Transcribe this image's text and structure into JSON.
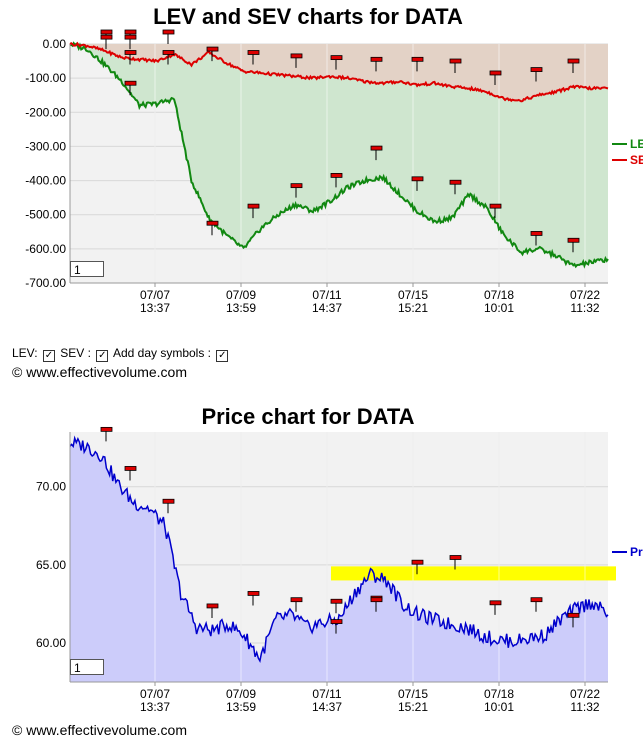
{
  "chart_data": [
    {
      "type": "line",
      "title": "LEV and SEV charts for DATA",
      "x_ticks": [
        {
          "date": "07/07",
          "time": "13:37"
        },
        {
          "date": "07/09",
          "time": "13:59"
        },
        {
          "date": "07/11",
          "time": "14:37"
        },
        {
          "date": "07/15",
          "time": "15:21"
        },
        {
          "date": "07/18",
          "time": "10:01"
        },
        {
          "date": "07/22",
          "time": "11:32"
        }
      ],
      "y_ticks": [
        "0.00",
        "-100.00",
        "-200.00",
        "-300.00",
        "-400.00",
        "-500.00",
        "-600.00",
        "-700.00"
      ],
      "ylim": [
        -700,
        0
      ],
      "legend_position": "right",
      "series": [
        {
          "name": "LEV",
          "label": "LE",
          "color": "#118811",
          "values": [
            0,
            -15,
            -60,
            -110,
            -180,
            -175,
            -160,
            -400,
            -510,
            -560,
            -600,
            -540,
            -500,
            -470,
            -490,
            -460,
            -420,
            -400,
            -390,
            -440,
            -490,
            -520,
            -510,
            -440,
            -480,
            -560,
            -610,
            -600,
            -620,
            -650,
            -640,
            -630
          ],
          "markers": [
            0,
            0,
            -60,
            -150,
            -560,
            -510,
            -450,
            -420,
            -340,
            -430,
            -440,
            -510,
            -590,
            -610
          ]
        },
        {
          "name": "SEV",
          "label": "SE",
          "color": "#dd0000",
          "values": [
            0,
            -5,
            -20,
            -40,
            -45,
            -50,
            -30,
            -60,
            -25,
            -55,
            -80,
            -85,
            -90,
            -95,
            -100,
            -95,
            -100,
            -110,
            -115,
            -110,
            -120,
            -115,
            -125,
            -130,
            -140,
            -160,
            -165,
            -150,
            -140,
            -125,
            -130,
            -130
          ],
          "markers": [
            -15,
            -15,
            0,
            -60,
            -50,
            -60,
            -70,
            -75,
            -80,
            -80,
            -85,
            -120,
            -110,
            -85
          ]
        }
      ],
      "fill_colors": {
        "lev_area": "#cfe6cf",
        "sev_area": "#e3d2c6"
      }
    },
    {
      "type": "line",
      "title": "Price chart for DATA",
      "x_ticks": [
        {
          "date": "07/07",
          "time": "13:37"
        },
        {
          "date": "07/09",
          "time": "13:59"
        },
        {
          "date": "07/11",
          "time": "14:37"
        },
        {
          "date": "07/15",
          "time": "15:21"
        },
        {
          "date": "07/18",
          "time": "10:01"
        },
        {
          "date": "07/22",
          "time": "11:32"
        }
      ],
      "y_ticks": [
        "70.00",
        "65.00",
        "60.00"
      ],
      "ylim": [
        57.5,
        73.5
      ],
      "legend_position": "right",
      "series": [
        {
          "name": "Price",
          "label": "Pr",
          "color": "#0000cc",
          "values": [
            72.8,
            72.6,
            72.0,
            70.2,
            69.0,
            68.6,
            67.5,
            63.2,
            61.0,
            60.8,
            61.2,
            60.5,
            59.0,
            61.5,
            61.8,
            61.0,
            61.3,
            61.5,
            63.2,
            64.4,
            64.0,
            62.5,
            61.8,
            61.5,
            61.2,
            61.0,
            60.5,
            60.2,
            60.1,
            60.3,
            60.5,
            61.5,
            62.2,
            62.6,
            61.8
          ],
          "markers": [
            72.9,
            70.4,
            68.3,
            61.6,
            62.4,
            62.0,
            61.9,
            62.1,
            64.4,
            64.7,
            61.8,
            62.0,
            61.0,
            60.6,
            62.0
          ]
        }
      ],
      "band": {
        "color": "#ffff00",
        "from": 64.0,
        "to": 64.9
      },
      "fill_color": "#ccccfa"
    }
  ],
  "controls": {
    "lev_label": "LEV:",
    "sev_label": "SEV :",
    "day_label": "Add day symbols :",
    "check": "☑"
  },
  "copyright": "© www.effectivevolume.com",
  "zoom_value": "1"
}
